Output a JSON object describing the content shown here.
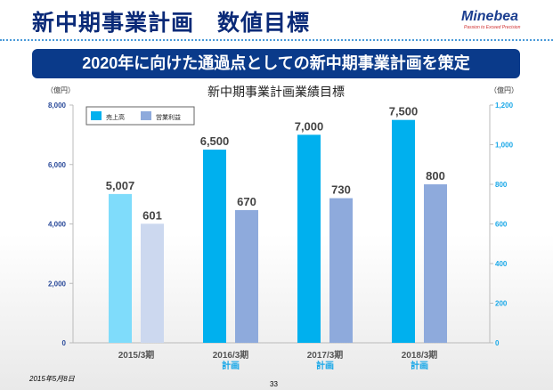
{
  "header": {
    "title": "新中期事業計画　数値目標",
    "logo": "Minebea",
    "tagline": "Passion to Exceed Precision"
  },
  "banner": "2020年に向けた通過点としての新中期事業計画を策定",
  "footer": {
    "date": "2015年5月8日",
    "page": "33"
  },
  "chart_data": {
    "type": "bar",
    "title": "新中期事業計画業績目標",
    "categories": [
      "2015/3期",
      "2016/3期",
      "2017/3期",
      "2018/3期"
    ],
    "sublabels": [
      "",
      "計画",
      "計画",
      "計画"
    ],
    "series": [
      {
        "name": "売上高",
        "axis": "left",
        "values": [
          5007,
          6500,
          7000,
          7500
        ],
        "colors": [
          "#7fdcfb",
          "#00b0ee",
          "#00b0ee",
          "#00b0ee"
        ],
        "labels": [
          "5,007",
          "6,500",
          "7,000",
          "7,500"
        ]
      },
      {
        "name": "営業利益",
        "axis": "right",
        "values": [
          601,
          670,
          730,
          800
        ],
        "colors": [
          "#ccd8ef",
          "#8eaadc",
          "#8eaadc",
          "#8eaadc"
        ],
        "labels": [
          "601",
          "670",
          "730",
          "800"
        ]
      }
    ],
    "left_axis": {
      "unit": "（億円）",
      "range": [
        0,
        8000
      ],
      "ticks": [
        "0",
        "2,000",
        "4,000",
        "6,000",
        "8,000"
      ]
    },
    "right_axis": {
      "unit": "（億円）",
      "range": [
        0,
        1200
      ],
      "ticks": [
        "0",
        "200",
        "400",
        "600",
        "800",
        "1,000",
        "1,200"
      ]
    },
    "legend": "top-left"
  }
}
